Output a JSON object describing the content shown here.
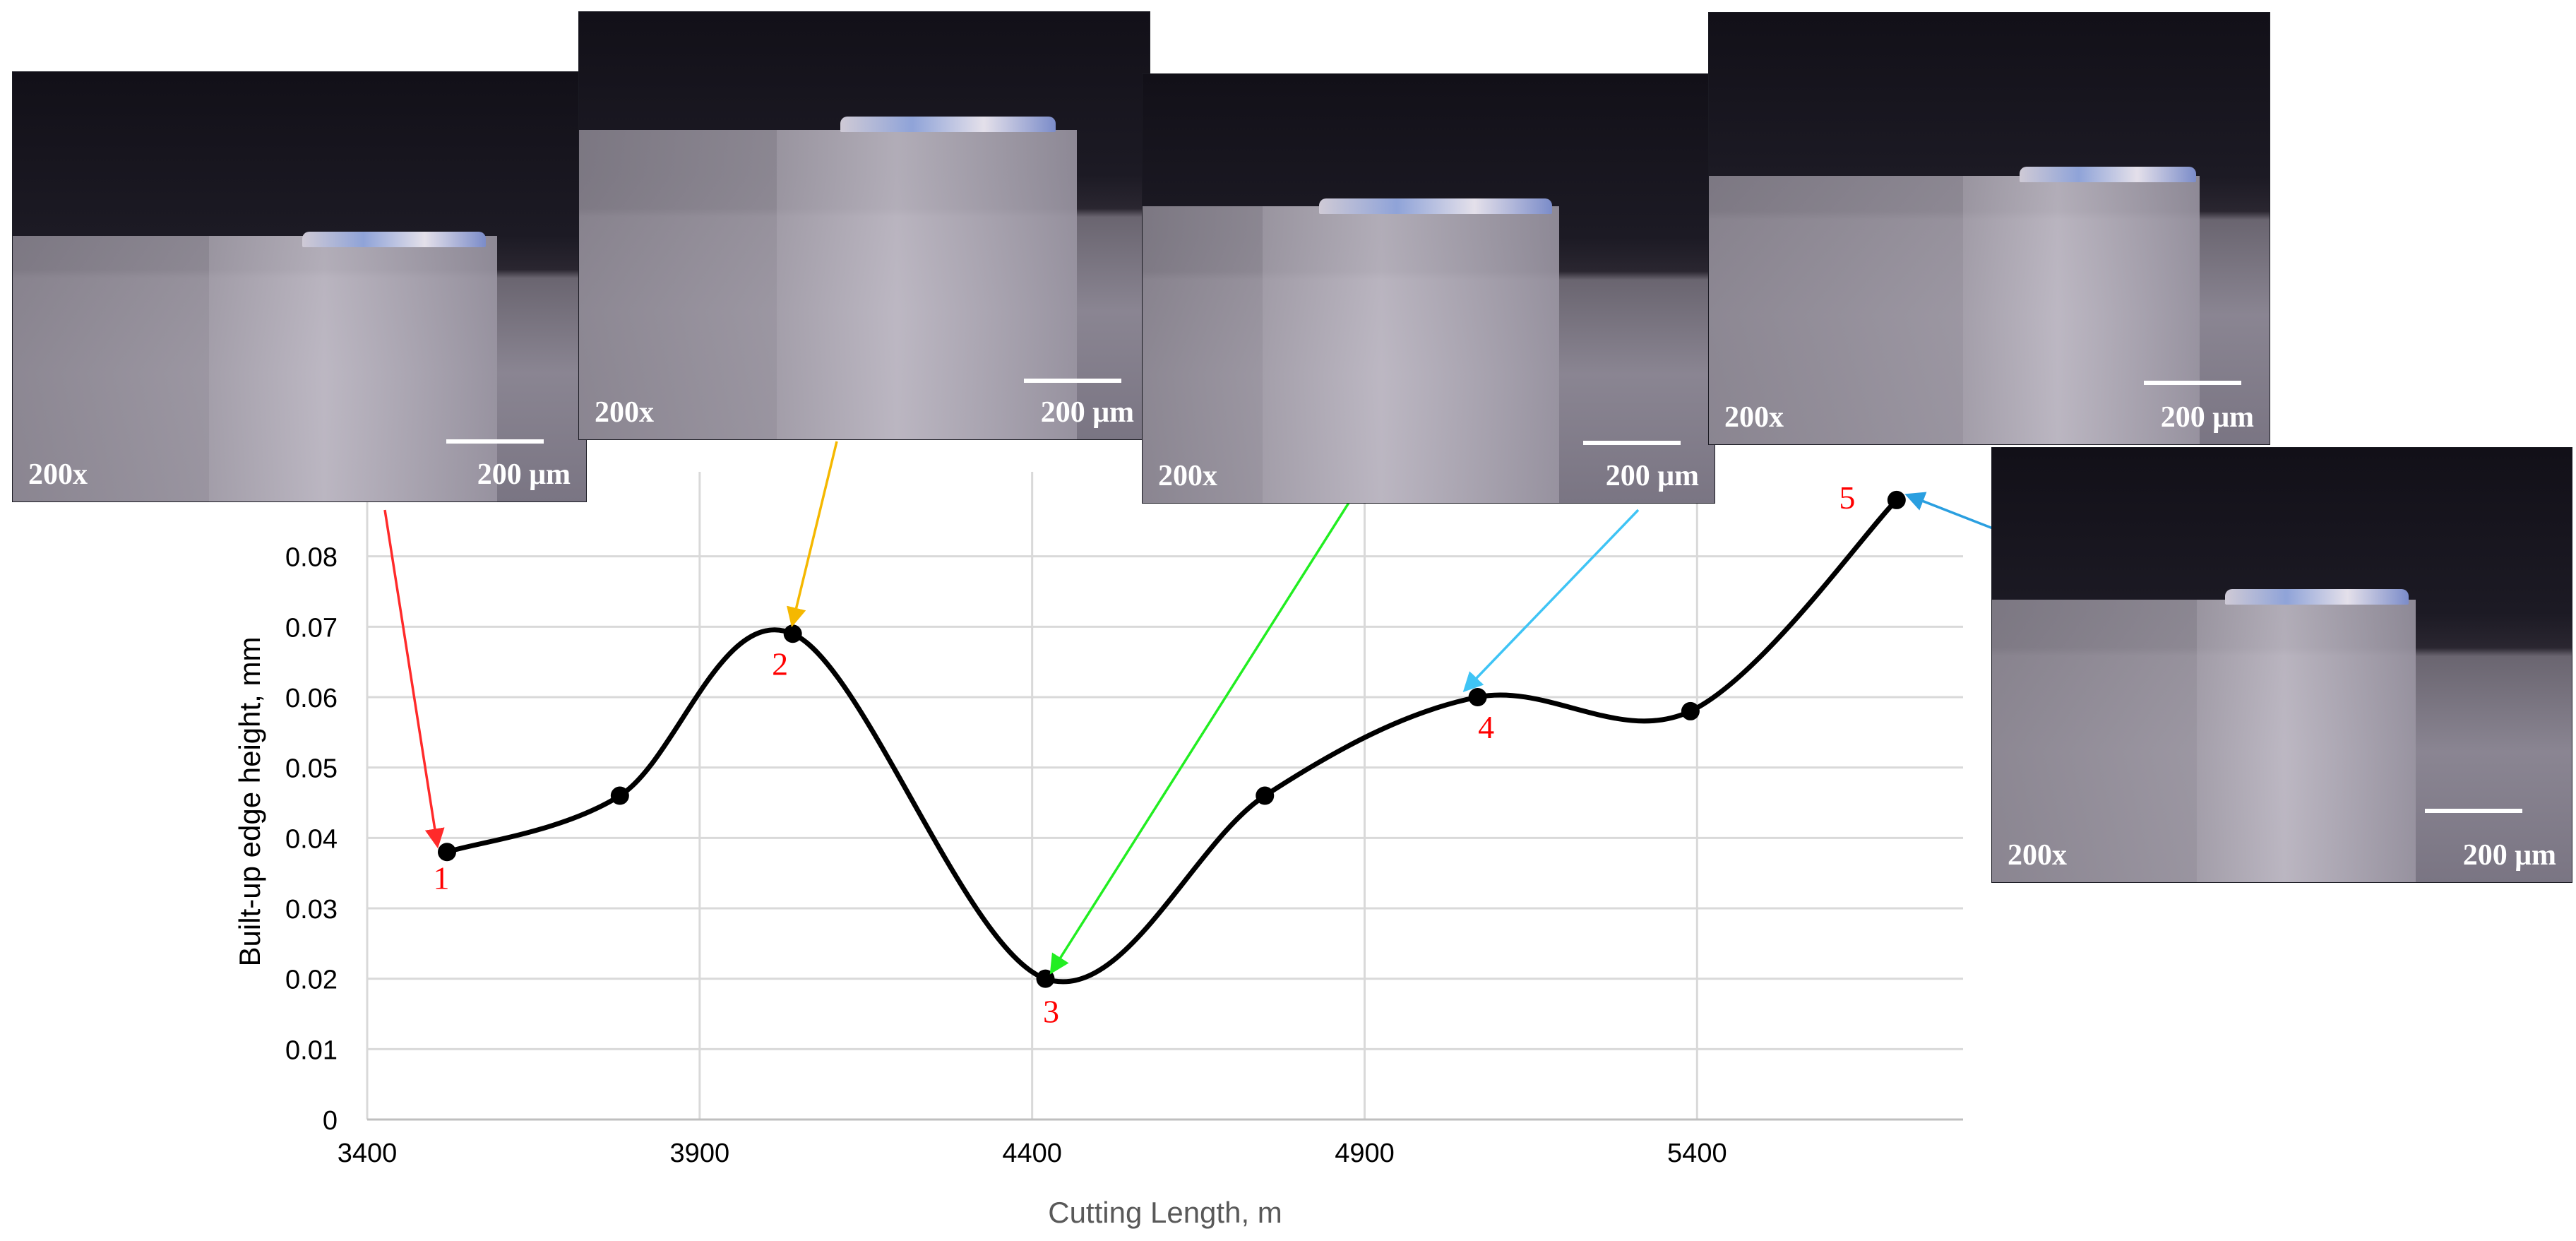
{
  "chart_data": {
    "type": "line",
    "xlabel": "Cutting Length, m",
    "ylabel": "Built-up edge height, mm",
    "xlim": [
      3400,
      5800
    ],
    "ylim": [
      0,
      0.09
    ],
    "x_ticks": [
      "3400",
      "3900",
      "4400",
      "4900",
      "5400"
    ],
    "y_ticks": [
      "0",
      "0.01",
      "0.02",
      "0.03",
      "0.04",
      "0.05",
      "0.06",
      "0.07",
      "0.08"
    ],
    "grid": true,
    "smooth": true,
    "series": [
      {
        "x": [
          3520,
          3780,
          4040,
          4420,
          4750,
          5070,
          5390,
          5700
        ],
        "y": [
          0.038,
          0.046,
          0.069,
          0.02,
          0.046,
          0.06,
          0.058,
          0.088
        ]
      }
    ],
    "point_labels": [
      {
        "label": "1",
        "x": 3520,
        "y": 0.038
      },
      {
        "label": "2",
        "x": 4040,
        "y": 0.069
      },
      {
        "label": "3",
        "x": 4420,
        "y": 0.02
      },
      {
        "label": "4",
        "x": 5070,
        "y": 0.06
      },
      {
        "label": "5",
        "x": 5700,
        "y": 0.088
      }
    ],
    "colors": {
      "line": "#000000",
      "labels": "#ff0000",
      "grid": "#d9d9d9"
    }
  },
  "micrographs": [
    {
      "id": "1",
      "magnification": "200x",
      "scale": "200 μm",
      "arrow_color": "#ff2a2a"
    },
    {
      "id": "2",
      "magnification": "200x",
      "scale": "200 μm",
      "arrow_color": "#f5b800"
    },
    {
      "id": "3",
      "magnification": "200x",
      "scale": "200 μm",
      "arrow_color": "#22ee22"
    },
    {
      "id": "4",
      "magnification": "200x",
      "scale": "200 μm",
      "arrow_color": "#3fc4f5"
    },
    {
      "id": "5",
      "magnification": "200x",
      "scale": "200 μm",
      "arrow_color": "#2a9fe0"
    }
  ]
}
